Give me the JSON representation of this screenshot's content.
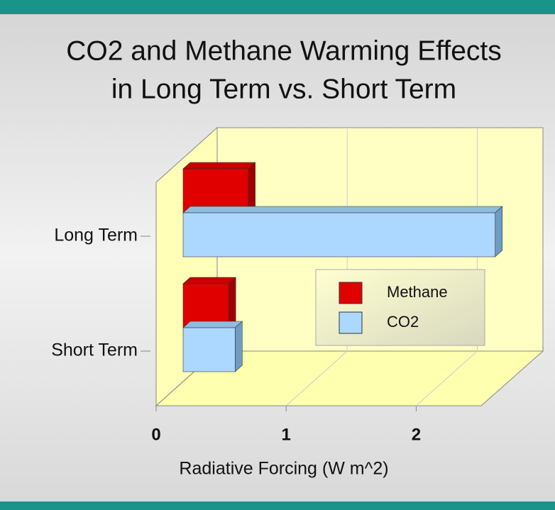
{
  "chart_data": {
    "type": "bar3d-horizontal",
    "title": [
      "CO2 and Methane Warming Effects",
      "in Long Term vs. Short Term"
    ],
    "x_label": "Radiative Forcing (W m^2)",
    "categories": [
      "Long Term",
      "Short Term"
    ],
    "series": [
      {
        "name": "Methane",
        "color": "#e00000",
        "values": [
          0.5,
          0.35
        ]
      },
      {
        "name": "CO2",
        "color": "#acd8ff",
        "values": [
          2.4,
          0.4
        ]
      }
    ],
    "xlim": [
      0,
      2.5
    ],
    "xticks": [
      0,
      1,
      2
    ],
    "grid": true,
    "legend": "lower-right"
  }
}
